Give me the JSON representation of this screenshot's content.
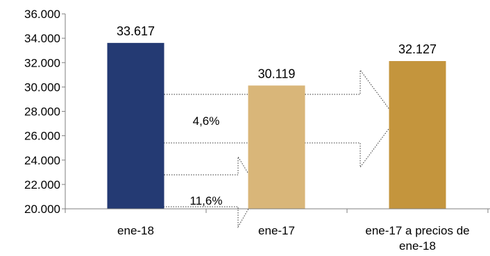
{
  "chart_data": {
    "type": "bar",
    "categories": [
      [
        "ene-18"
      ],
      [
        "ene-17"
      ],
      [
        "ene-17 a precios de",
        "ene-18"
      ]
    ],
    "values": [
      33617,
      30119,
      32127
    ],
    "data_labels": [
      "33.617",
      "30.119",
      "32.127"
    ],
    "bar_colors": [
      "#243a73",
      "#d9b679",
      "#c4953d"
    ],
    "ylim": [
      20000,
      36000
    ],
    "y_ticks": [
      20000,
      22000,
      24000,
      26000,
      28000,
      30000,
      32000,
      34000,
      36000
    ],
    "y_tick_labels": [
      "20.000",
      "22.000",
      "24.000",
      "26.000",
      "28.000",
      "30.000",
      "32.000",
      "34.000",
      "36.000"
    ],
    "grid": false,
    "legend": "none",
    "annotations": [
      {
        "label": "4,6%",
        "from_category": "ene-18",
        "to_category": "ene-17 a precios de ene-18",
        "style": "dotted-outline-arrow"
      },
      {
        "label": "11,6%",
        "from_category": "ene-18",
        "to_category": "ene-17",
        "style": "dotted-outline-arrow"
      }
    ]
  }
}
